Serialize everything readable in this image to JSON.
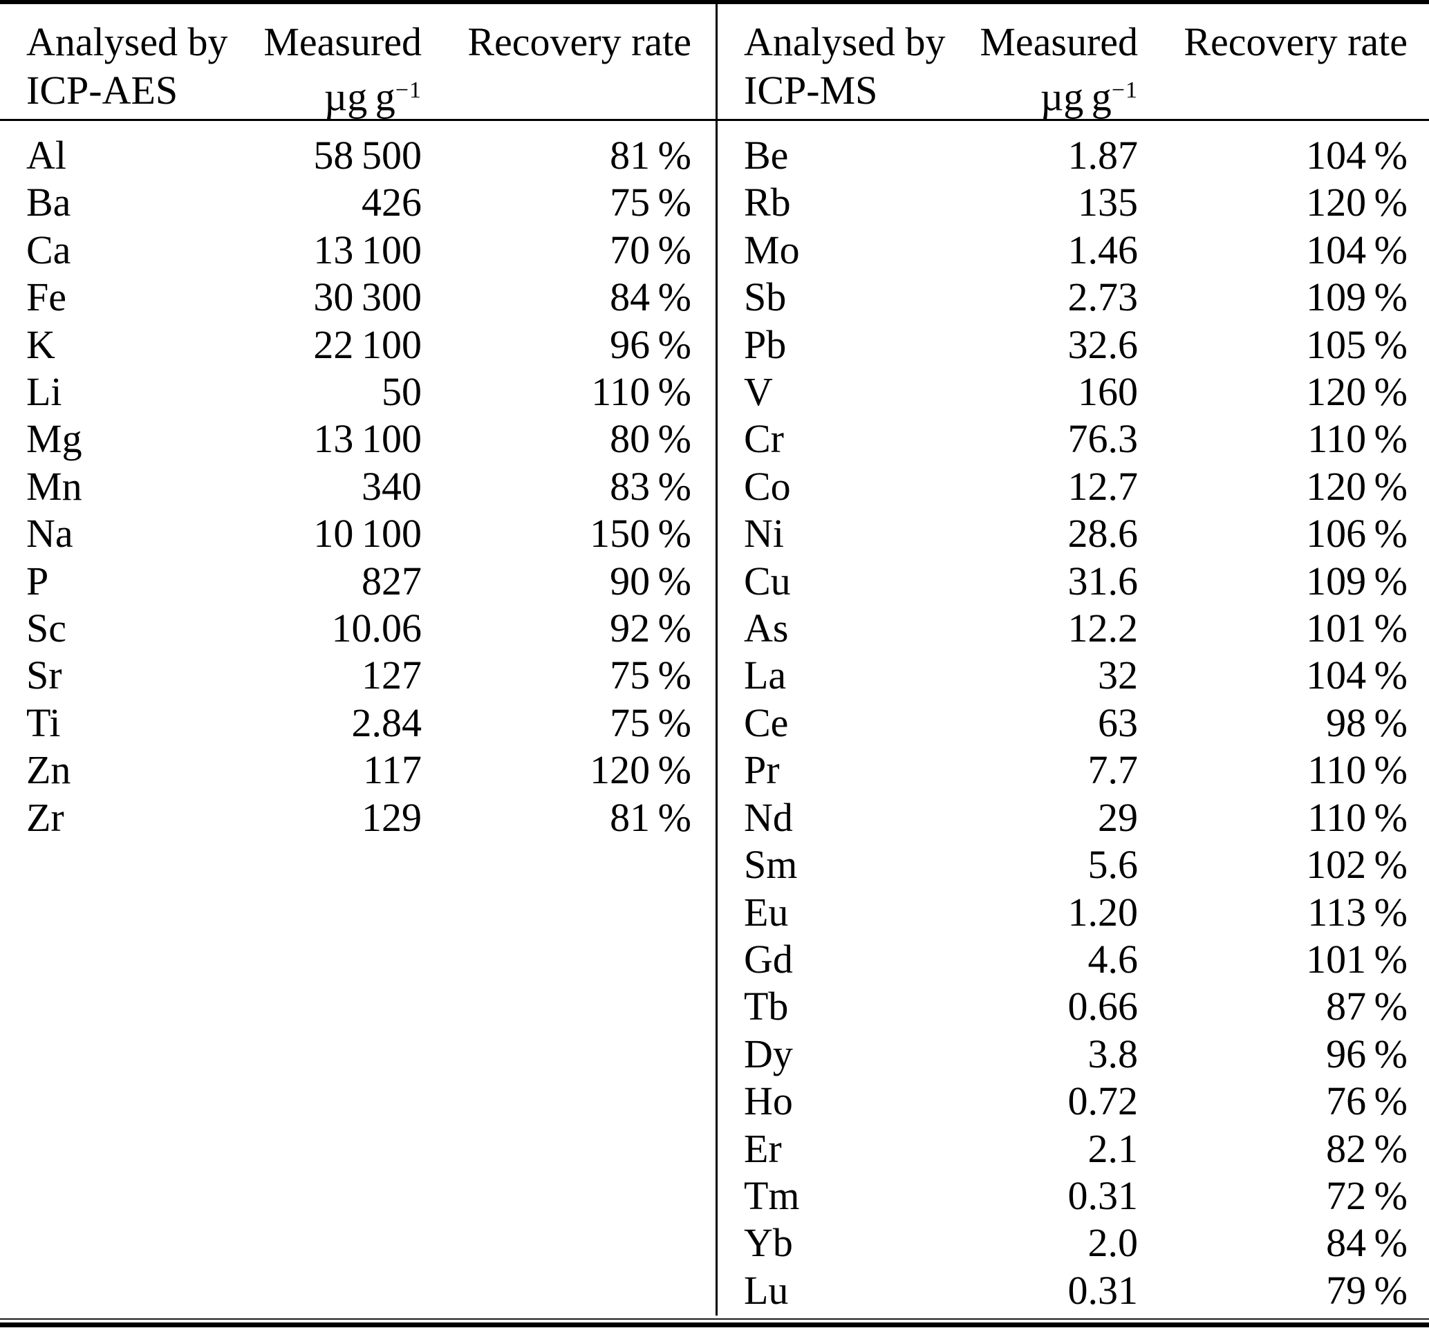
{
  "table": {
    "left": {
      "header": {
        "analysed_line1": "Analysed by",
        "analysed_line2": "ICP-AES",
        "measured_label": "Measured",
        "measured_unit_base": "µg g",
        "measured_unit_exp": "−1",
        "recovery_label": "Recovery rate"
      },
      "rows": [
        {
          "element": "Al",
          "measured": "58 500",
          "recovery": "81 %"
        },
        {
          "element": "Ba",
          "measured": "426",
          "recovery": "75 %"
        },
        {
          "element": "Ca",
          "measured": "13 100",
          "recovery": "70 %"
        },
        {
          "element": "Fe",
          "measured": "30 300",
          "recovery": "84 %"
        },
        {
          "element": "K",
          "measured": "22 100",
          "recovery": "96 %"
        },
        {
          "element": "Li",
          "measured": "50",
          "recovery": "110 %"
        },
        {
          "element": "Mg",
          "measured": "13 100",
          "recovery": "80 %"
        },
        {
          "element": "Mn",
          "measured": "340",
          "recovery": "83 %"
        },
        {
          "element": "Na",
          "measured": "10 100",
          "recovery": "150 %"
        },
        {
          "element": "P",
          "measured": "827",
          "recovery": "90 %"
        },
        {
          "element": "Sc",
          "measured": "10.06",
          "recovery": "92 %"
        },
        {
          "element": "Sr",
          "measured": "127",
          "recovery": "75 %"
        },
        {
          "element": "Ti",
          "measured": "2.84",
          "recovery": "75 %"
        },
        {
          "element": "Zn",
          "measured": "117",
          "recovery": "120 %"
        },
        {
          "element": "Zr",
          "measured": "129",
          "recovery": "81 %"
        }
      ]
    },
    "right": {
      "header": {
        "analysed_line1": "Analysed by",
        "analysed_line2": "ICP-MS",
        "measured_label": "Measured",
        "measured_unit_base": "µg g",
        "measured_unit_exp": "−1",
        "recovery_label": "Recovery rate"
      },
      "rows": [
        {
          "element": "Be",
          "measured": "1.87",
          "recovery": "104 %"
        },
        {
          "element": "Rb",
          "measured": "135",
          "recovery": "120 %"
        },
        {
          "element": "Mo",
          "measured": "1.46",
          "recovery": "104 %"
        },
        {
          "element": "Sb",
          "measured": "2.73",
          "recovery": "109 %"
        },
        {
          "element": "Pb",
          "measured": "32.6",
          "recovery": "105 %"
        },
        {
          "element": "V",
          "measured": "160",
          "recovery": "120 %"
        },
        {
          "element": "Cr",
          "measured": "76.3",
          "recovery": "110 %"
        },
        {
          "element": "Co",
          "measured": "12.7",
          "recovery": "120 %"
        },
        {
          "element": "Ni",
          "measured": "28.6",
          "recovery": "106 %"
        },
        {
          "element": "Cu",
          "measured": "31.6",
          "recovery": "109 %"
        },
        {
          "element": "As",
          "measured": "12.2",
          "recovery": "101 %"
        },
        {
          "element": "La",
          "measured": "32",
          "recovery": "104 %"
        },
        {
          "element": "Ce",
          "measured": "63",
          "recovery": "98 %"
        },
        {
          "element": "Pr",
          "measured": "7.7",
          "recovery": "110 %"
        },
        {
          "element": "Nd",
          "measured": "29",
          "recovery": "110 %"
        },
        {
          "element": "Sm",
          "measured": "5.6",
          "recovery": "102 %"
        },
        {
          "element": "Eu",
          "measured": "1.20",
          "recovery": "113 %"
        },
        {
          "element": "Gd",
          "measured": "4.6",
          "recovery": "101 %"
        },
        {
          "element": "Tb",
          "measured": "0.66",
          "recovery": "87 %"
        },
        {
          "element": "Dy",
          "measured": "3.8",
          "recovery": "96 %"
        },
        {
          "element": "Ho",
          "measured": "0.72",
          "recovery": "76 %"
        },
        {
          "element": "Er",
          "measured": "2.1",
          "recovery": "82 %"
        },
        {
          "element": "Tm",
          "measured": "0.31",
          "recovery": "72 %"
        },
        {
          "element": "Yb",
          "measured": "2.0",
          "recovery": "84 %"
        },
        {
          "element": "Lu",
          "measured": "0.31",
          "recovery": "79 %"
        }
      ]
    }
  }
}
